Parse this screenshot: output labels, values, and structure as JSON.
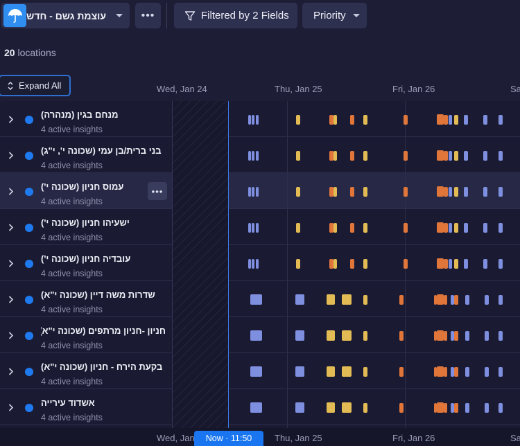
{
  "toolbar": {
    "layer_label": "עוצמת גשם - חדש",
    "layer_icon": "umbrella-icon",
    "more_label": "•••",
    "filter_label": "Filtered by 2 Fields",
    "priority_label": "Priority"
  },
  "summary": {
    "count": "20",
    "count_suffix": "locations"
  },
  "expand_all_label": "Expand All",
  "timeline": {
    "top_dates": [
      "Wed, Jan 24",
      "Thu, Jan 25",
      "Fri, Jan 26",
      "Sa"
    ],
    "bottom_dates": [
      "Wed, Jan",
      "Thu, Jan 25",
      "Fri, Jan 26",
      "Sa"
    ],
    "now_label": "Now · 11:50"
  },
  "colors": {
    "blue": "#7f8fe0",
    "yellow": "#e3bb55",
    "orange": "#e0763a",
    "accent": "#1f7af0"
  },
  "rows": [
    {
      "name": "מנחם בגין (מנהרה)",
      "sub": "4 active insights"
    },
    {
      "name": "בני ברית/בן עמי (שכונה י', י\"ג)",
      "sub": "4 active insights"
    },
    {
      "name": "עמוס חניון (שכונה י')",
      "sub": "4 active insights",
      "more": "•••"
    },
    {
      "name": "ישעיהו חניון (שכונה י')",
      "sub": "4 active insights"
    },
    {
      "name": "עובדיה חניון (שכונה י')",
      "sub": "4 active insights"
    },
    {
      "name": "שדרות משה דיין (שכונה י\"א)",
      "sub": "4 active insights"
    },
    {
      "name": "חניון -חניון מרתפים (שכונה י\"א)",
      "sub": "4 active insights"
    },
    {
      "name": "בקעת הירח - חניון (שכונה י\"א)",
      "sub": "4 active insights"
    },
    {
      "name": "אשדוד עירייה",
      "sub": "4 active insights"
    }
  ]
}
